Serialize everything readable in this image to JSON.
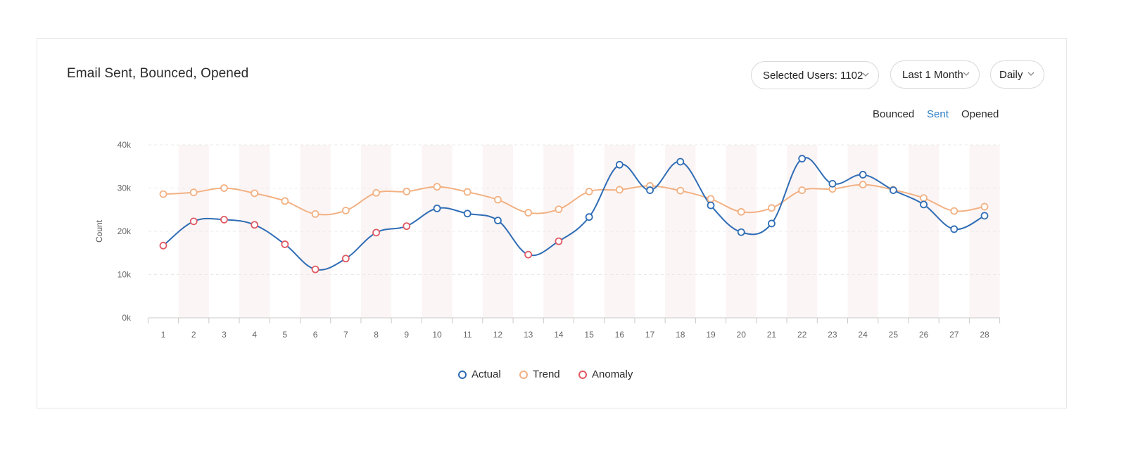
{
  "card": {
    "title": "Email Sent, Bounced, Opened"
  },
  "controls": {
    "users_label": "Selected Users: 1102",
    "period_label": "Last 1 Month",
    "granularity_label": "Daily"
  },
  "tabs": {
    "bounced": "Bounced",
    "sent": "Sent",
    "opened": "Opened"
  },
  "colors": {
    "actual": "#2f6db5",
    "trend": "#f2b183",
    "anomaly": "#e05a64",
    "active_tab": "#2f7fc6"
  },
  "chart_data": {
    "type": "line",
    "title": "Email Sent, Bounced, Opened",
    "xlabel": "",
    "ylabel": "Count",
    "ylim": [
      0,
      40000
    ],
    "y_ticks": [
      {
        "value": 0,
        "label": "0k"
      },
      {
        "value": 10000,
        "label": "10k"
      },
      {
        "value": 20000,
        "label": "20k"
      },
      {
        "value": 30000,
        "label": "30k"
      },
      {
        "value": 40000,
        "label": "40k"
      }
    ],
    "categories": [
      "1",
      "2",
      "3",
      "4",
      "5",
      "6",
      "7",
      "8",
      "9",
      "10",
      "11",
      "12",
      "13",
      "14",
      "15",
      "16",
      "17",
      "18",
      "19",
      "20",
      "21",
      "22",
      "23",
      "24",
      "25",
      "26",
      "27",
      "28"
    ],
    "series": [
      {
        "name": "Actual",
        "values": [
          16700,
          22300,
          22700,
          21500,
          17000,
          11200,
          13700,
          19700,
          21200,
          25300,
          24100,
          22500,
          14600,
          17700,
          23300,
          35400,
          29500,
          36100,
          26000,
          19800,
          21800,
          36800,
          31000,
          33100,
          29500,
          26200,
          20500,
          23600
        ]
      },
      {
        "name": "Trend",
        "values": [
          28600,
          29000,
          30000,
          28800,
          27000,
          24000,
          24800,
          28900,
          29200,
          30300,
          29100,
          27300,
          24300,
          25100,
          29200,
          29600,
          30500,
          29400,
          27500,
          24500,
          25400,
          29500,
          29800,
          30800,
          29600,
          27700,
          24700,
          25700
        ]
      },
      {
        "name": "Anomaly",
        "x_days": [
          1,
          2,
          3,
          4,
          5,
          6,
          7,
          8,
          9,
          13,
          14
        ]
      }
    ],
    "legend": [
      "Actual",
      "Trend",
      "Anomaly"
    ],
    "legend_position": "bottom-center",
    "grid": true
  }
}
